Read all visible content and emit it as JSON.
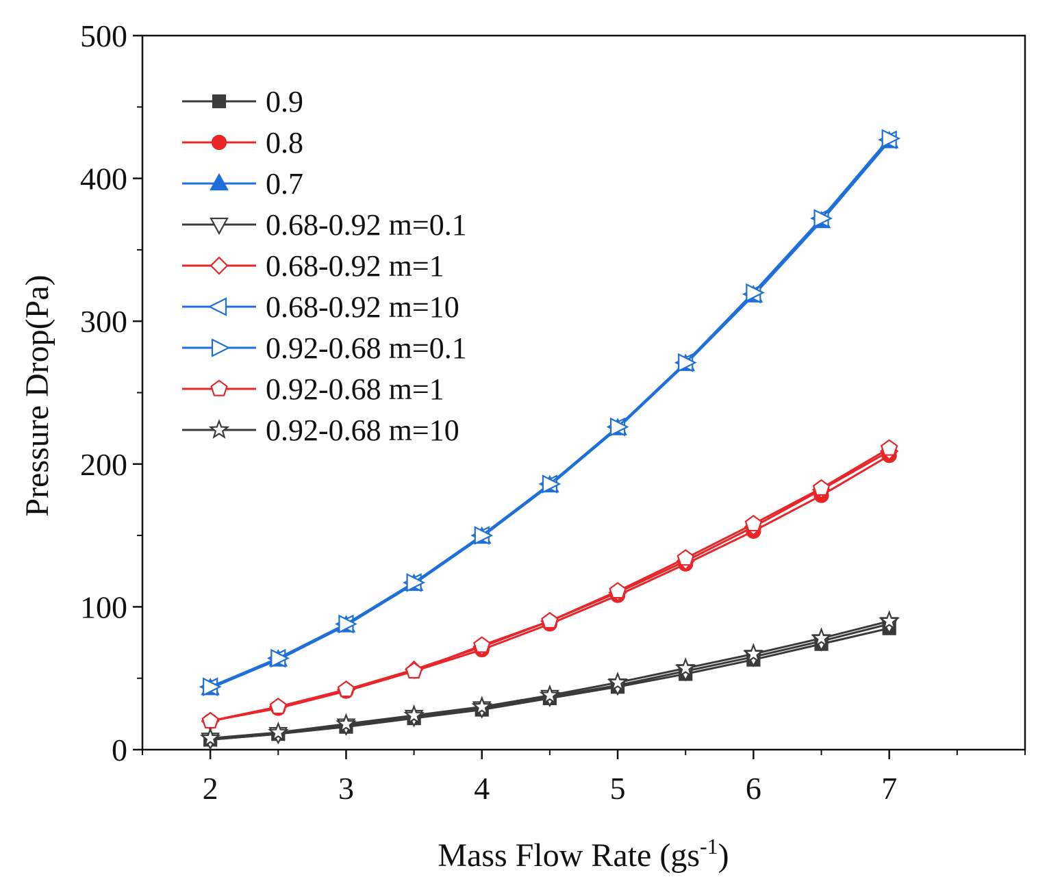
{
  "chart_data": {
    "type": "line",
    "title": "",
    "xlabel": "Mass Flow Rate (gs",
    "xlabel_sup": "-1",
    "xlabel_close": ")",
    "ylabel": "Pressure Drop(Pa)",
    "xlim": [
      1.5,
      8.0
    ],
    "ylim": [
      0,
      500
    ],
    "x_ticks": [
      2,
      3,
      4,
      5,
      6,
      7
    ],
    "x_tick_labels": [
      "2",
      "3",
      "4",
      "5",
      "6",
      "7"
    ],
    "y_ticks": [
      0,
      100,
      200,
      300,
      400,
      500
    ],
    "y_tick_labels": [
      "0",
      "100",
      "200",
      "300",
      "400",
      "500"
    ],
    "legend_position": "top-left",
    "x": [
      2,
      2.5,
      3,
      3.5,
      4,
      4.5,
      5,
      5.5,
      6,
      6.5,
      7
    ],
    "series": [
      {
        "name": "0.9",
        "color": "#3a3a3a",
        "marker": "square-filled",
        "values": [
          7,
          11,
          16,
          22,
          28,
          36,
          44,
          53,
          63,
          74,
          85
        ]
      },
      {
        "name": "0.8",
        "color": "#e8262a",
        "marker": "circle-filled",
        "values": [
          20,
          29,
          41,
          55,
          70,
          88,
          108,
          130,
          153,
          178,
          206
        ]
      },
      {
        "name": "0.7",
        "color": "#1f6fd8",
        "marker": "triangle-up-filled",
        "values": [
          43,
          63,
          87,
          116,
          149,
          185,
          225,
          270,
          318,
          370,
          426
        ]
      },
      {
        "name": "0.68-0.92 m=0.1",
        "color": "#3a3a3a",
        "marker": "triangle-down-open",
        "values": [
          7,
          11,
          17,
          23,
          29,
          37,
          45,
          55,
          65,
          76,
          88
        ]
      },
      {
        "name": "0.68-0.92 m=1",
        "color": "#e8262a",
        "marker": "diamond-open",
        "values": [
          20,
          30,
          42,
          56,
          72,
          90,
          110,
          132,
          156,
          182,
          209
        ]
      },
      {
        "name": "0.68-0.92 m=10",
        "color": "#1f6fd8",
        "marker": "triangle-left-open",
        "values": [
          44,
          64,
          88,
          117,
          150,
          186,
          226,
          271,
          319,
          372,
          427
        ]
      },
      {
        "name": "0.92-0.68 m=0.1",
        "color": "#1f6fd8",
        "marker": "triangle-right-open",
        "values": [
          44,
          64,
          88,
          117,
          150,
          186,
          226,
          271,
          320,
          372,
          428
        ]
      },
      {
        "name": "0.92-0.68 m=1",
        "color": "#e8262a",
        "marker": "pentagon-open",
        "values": [
          20,
          30,
          42,
          55,
          73,
          90,
          111,
          134,
          158,
          183,
          211
        ]
      },
      {
        "name": "0.92-0.68 m=10",
        "color": "#3a3a3a",
        "marker": "star-open",
        "values": [
          8,
          12,
          18,
          24,
          30,
          38,
          47,
          57,
          67,
          78,
          90
        ]
      }
    ]
  }
}
